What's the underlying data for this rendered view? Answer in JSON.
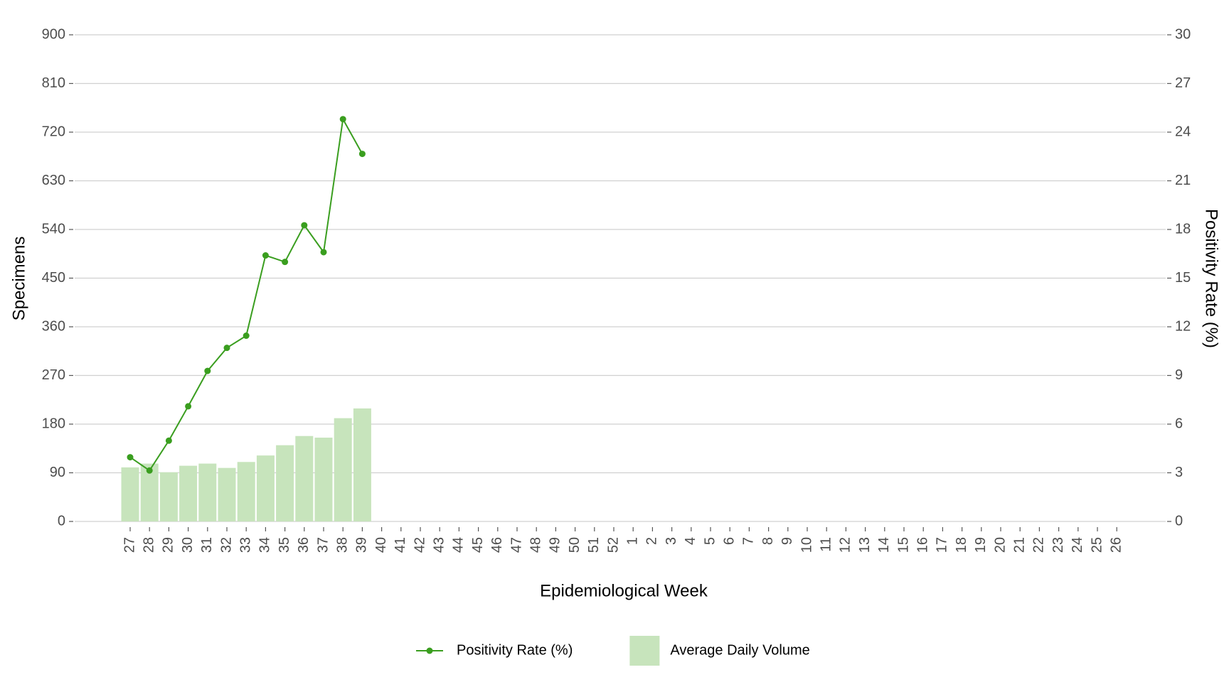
{
  "chart_data": {
    "type": "bar_line",
    "x_label": "Epidemiological Week",
    "y_label": "Specimens",
    "y2_label": "Positivity Rate (%)",
    "categories": [
      "27",
      "28",
      "29",
      "30",
      "31",
      "32",
      "33",
      "34",
      "35",
      "36",
      "37",
      "38",
      "39",
      "40",
      "41",
      "42",
      "43",
      "44",
      "45",
      "46",
      "47",
      "48",
      "49",
      "50",
      "51",
      "52",
      "1",
      "2",
      "3",
      "4",
      "5",
      "6",
      "7",
      "8",
      "9",
      "10",
      "11",
      "12",
      "13",
      "14",
      "15",
      "16",
      "17",
      "18",
      "19",
      "20",
      "21",
      "22",
      "23",
      "24",
      "25",
      "26"
    ],
    "series": [
      {
        "name": "Positivity Rate (%)",
        "type": "line",
        "axis": "y2",
        "color": "#3a9e1f",
        "values": [
          3.96,
          3.14,
          4.98,
          7.1,
          9.28,
          10.7,
          11.45,
          16.4,
          16.0,
          18.26,
          16.6,
          24.8,
          22.66,
          null,
          null,
          null,
          null,
          null,
          null,
          null,
          null,
          null,
          null,
          null,
          null,
          null,
          null,
          null,
          null,
          null,
          null,
          null,
          null,
          null,
          null,
          null,
          null,
          null,
          null,
          null,
          null,
          null,
          null,
          null,
          null,
          null,
          null,
          null,
          null,
          null,
          null,
          null
        ]
      },
      {
        "name": "Average Daily Volume",
        "type": "bar",
        "color": "#c7e4bc",
        "values": [
          100,
          107,
          91,
          103,
          107,
          99,
          110,
          122,
          141,
          158,
          155,
          191,
          209,
          null,
          null,
          null,
          null,
          null,
          null,
          null,
          null,
          null,
          null,
          null,
          null,
          null,
          null,
          null,
          null,
          null,
          null,
          null,
          null,
          null,
          null,
          null,
          null,
          null,
          null,
          null,
          null,
          null,
          null,
          null,
          null,
          null,
          null,
          null,
          null,
          null,
          null,
          null
        ]
      }
    ],
    "ylim": [
      0,
      900
    ],
    "yticks": [
      0,
      90,
      180,
      270,
      360,
      450,
      540,
      630,
      720,
      810,
      900
    ],
    "y2lim": [
      0,
      30
    ],
    "y2ticks": [
      0,
      3,
      6,
      9,
      12,
      15,
      18,
      21,
      24,
      27,
      30
    ],
    "grid": true,
    "legend": "bottom"
  }
}
